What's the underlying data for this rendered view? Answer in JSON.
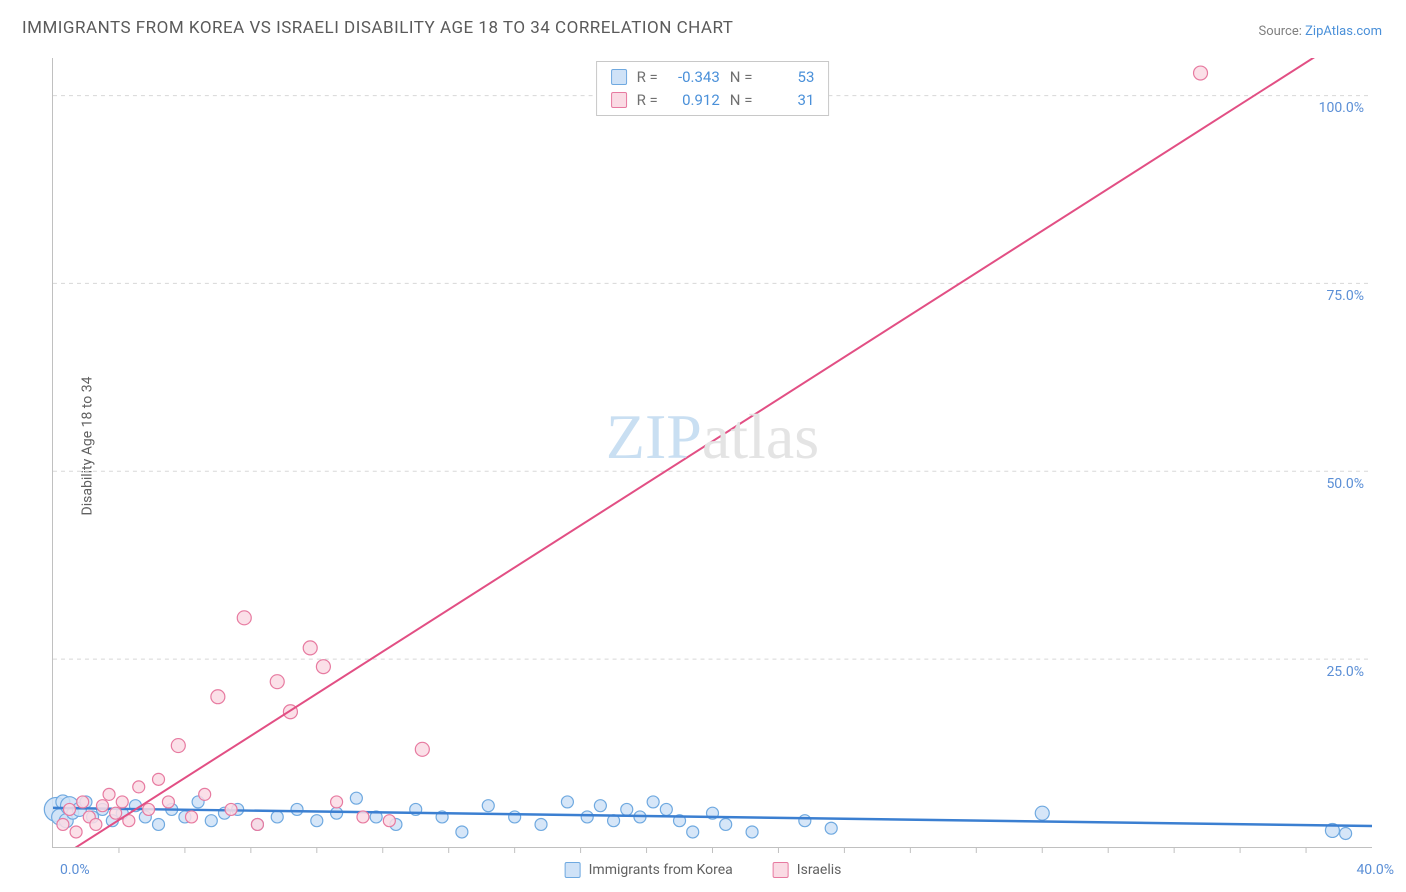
{
  "title": "IMMIGRANTS FROM KOREA VS ISRAELI DISABILITY AGE 18 TO 34 CORRELATION CHART",
  "source": {
    "label": "Source: ",
    "link": "ZipAtlas.com"
  },
  "ylabel": "Disability Age 18 to 34",
  "watermark": {
    "a": "ZIP",
    "b": "atlas"
  },
  "chart": {
    "type": "scatter",
    "xlim": [
      0,
      40
    ],
    "ylim": [
      0,
      105
    ],
    "background_color": "#ffffff",
    "grid_color": "#d8d8d8",
    "axis_color": "#c0c0c0",
    "tick_color": "#5b8fd6",
    "tick_fontsize": 14,
    "yticks": [
      {
        "v": 25,
        "label": "25.0%"
      },
      {
        "v": 50,
        "label": "50.0%"
      },
      {
        "v": 75,
        "label": "75.0%"
      },
      {
        "v": 100,
        "label": "100.0%"
      }
    ],
    "origin_label": "0.0%",
    "xmax_label": "40.0%",
    "xtick_minor": [
      2,
      4,
      6,
      8,
      10,
      12,
      14,
      16,
      18,
      20,
      22,
      24,
      26,
      28,
      30,
      32,
      34,
      36,
      38
    ]
  },
  "series": [
    {
      "key": "korea",
      "label": "Immigrants from Korea",
      "marker_fill": "#cfe2f7",
      "marker_stroke": "#6fa9e0",
      "marker_opacity": 0.85,
      "line_color": "#3b7fd1",
      "line_width": 2.5,
      "trend": {
        "x1": 0,
        "y1": 5.2,
        "x2": 40,
        "y2": 2.8
      },
      "R": "-0.343",
      "N": "53",
      "points": [
        {
          "x": 0.1,
          "y": 5.0,
          "r": 12
        },
        {
          "x": 0.2,
          "y": 4.0,
          "r": 8
        },
        {
          "x": 0.3,
          "y": 6.0,
          "r": 7
        },
        {
          "x": 0.4,
          "y": 3.5,
          "r": 7
        },
        {
          "x": 0.5,
          "y": 5.5,
          "r": 9
        },
        {
          "x": 0.6,
          "y": 4.5,
          "r": 6
        },
        {
          "x": 0.8,
          "y": 5.0,
          "r": 7
        },
        {
          "x": 1.0,
          "y": 6.0,
          "r": 6
        },
        {
          "x": 1.2,
          "y": 4.0,
          "r": 6
        },
        {
          "x": 1.5,
          "y": 5.0,
          "r": 6
        },
        {
          "x": 1.8,
          "y": 3.5,
          "r": 6
        },
        {
          "x": 2.1,
          "y": 4.5,
          "r": 6
        },
        {
          "x": 2.5,
          "y": 5.5,
          "r": 6
        },
        {
          "x": 2.8,
          "y": 4.0,
          "r": 6
        },
        {
          "x": 3.2,
          "y": 3.0,
          "r": 6
        },
        {
          "x": 3.6,
          "y": 5.0,
          "r": 6
        },
        {
          "x": 4.0,
          "y": 4.0,
          "r": 6
        },
        {
          "x": 4.4,
          "y": 6.0,
          "r": 6
        },
        {
          "x": 4.8,
          "y": 3.5,
          "r": 6
        },
        {
          "x": 5.2,
          "y": 4.5,
          "r": 6
        },
        {
          "x": 5.6,
          "y": 5.0,
          "r": 6
        },
        {
          "x": 6.2,
          "y": 3.0,
          "r": 6
        },
        {
          "x": 6.8,
          "y": 4.0,
          "r": 6
        },
        {
          "x": 7.4,
          "y": 5.0,
          "r": 6
        },
        {
          "x": 8.0,
          "y": 3.5,
          "r": 6
        },
        {
          "x": 8.6,
          "y": 4.5,
          "r": 6
        },
        {
          "x": 9.2,
          "y": 6.5,
          "r": 6
        },
        {
          "x": 9.8,
          "y": 4.0,
          "r": 6
        },
        {
          "x": 10.4,
          "y": 3.0,
          "r": 6
        },
        {
          "x": 11.0,
          "y": 5.0,
          "r": 6
        },
        {
          "x": 11.8,
          "y": 4.0,
          "r": 6
        },
        {
          "x": 12.4,
          "y": 2.0,
          "r": 6
        },
        {
          "x": 13.2,
          "y": 5.5,
          "r": 6
        },
        {
          "x": 14.0,
          "y": 4.0,
          "r": 6
        },
        {
          "x": 14.8,
          "y": 3.0,
          "r": 6
        },
        {
          "x": 15.6,
          "y": 6.0,
          "r": 6
        },
        {
          "x": 16.2,
          "y": 4.0,
          "r": 6
        },
        {
          "x": 16.6,
          "y": 5.5,
          "r": 6
        },
        {
          "x": 17.0,
          "y": 3.5,
          "r": 6
        },
        {
          "x": 17.4,
          "y": 5.0,
          "r": 6
        },
        {
          "x": 17.8,
          "y": 4.0,
          "r": 6
        },
        {
          "x": 18.2,
          "y": 6.0,
          "r": 6
        },
        {
          "x": 18.6,
          "y": 5.0,
          "r": 6
        },
        {
          "x": 19.0,
          "y": 3.5,
          "r": 6
        },
        {
          "x": 19.4,
          "y": 2.0,
          "r": 6
        },
        {
          "x": 20.0,
          "y": 4.5,
          "r": 6
        },
        {
          "x": 20.4,
          "y": 3.0,
          "r": 6
        },
        {
          "x": 21.2,
          "y": 2.0,
          "r": 6
        },
        {
          "x": 22.8,
          "y": 3.5,
          "r": 6
        },
        {
          "x": 23.6,
          "y": 2.5,
          "r": 6
        },
        {
          "x": 30.0,
          "y": 4.5,
          "r": 7
        },
        {
          "x": 38.8,
          "y": 2.2,
          "r": 7
        },
        {
          "x": 39.2,
          "y": 1.8,
          "r": 6
        }
      ]
    },
    {
      "key": "israeli",
      "label": "Israelis",
      "marker_fill": "#fadbe4",
      "marker_stroke": "#e77aa0",
      "marker_opacity": 0.85,
      "line_color": "#e24f84",
      "line_width": 2,
      "trend": {
        "x1": 0,
        "y1": -2.0,
        "x2": 40,
        "y2": 110
      },
      "R": "0.912",
      "N": "31",
      "points": [
        {
          "x": 0.3,
          "y": 3.0,
          "r": 6
        },
        {
          "x": 0.5,
          "y": 5.0,
          "r": 6
        },
        {
          "x": 0.7,
          "y": 2.0,
          "r": 6
        },
        {
          "x": 0.9,
          "y": 6.0,
          "r": 6
        },
        {
          "x": 1.1,
          "y": 4.0,
          "r": 6
        },
        {
          "x": 1.3,
          "y": 3.0,
          "r": 6
        },
        {
          "x": 1.5,
          "y": 5.5,
          "r": 6
        },
        {
          "x": 1.7,
          "y": 7.0,
          "r": 6
        },
        {
          "x": 1.9,
          "y": 4.5,
          "r": 6
        },
        {
          "x": 2.1,
          "y": 6.0,
          "r": 6
        },
        {
          "x": 2.3,
          "y": 3.5,
          "r": 6
        },
        {
          "x": 2.6,
          "y": 8.0,
          "r": 6
        },
        {
          "x": 2.9,
          "y": 5.0,
          "r": 6
        },
        {
          "x": 3.2,
          "y": 9.0,
          "r": 6
        },
        {
          "x": 3.5,
          "y": 6.0,
          "r": 6
        },
        {
          "x": 3.8,
          "y": 13.5,
          "r": 7
        },
        {
          "x": 4.2,
          "y": 4.0,
          "r": 6
        },
        {
          "x": 4.6,
          "y": 7.0,
          "r": 6
        },
        {
          "x": 5.0,
          "y": 20.0,
          "r": 7
        },
        {
          "x": 5.4,
          "y": 5.0,
          "r": 6
        },
        {
          "x": 5.8,
          "y": 30.5,
          "r": 7
        },
        {
          "x": 6.2,
          "y": 3.0,
          "r": 6
        },
        {
          "x": 6.8,
          "y": 22.0,
          "r": 7
        },
        {
          "x": 7.2,
          "y": 18.0,
          "r": 7
        },
        {
          "x": 7.8,
          "y": 26.5,
          "r": 7
        },
        {
          "x": 8.2,
          "y": 24.0,
          "r": 7
        },
        {
          "x": 8.6,
          "y": 6.0,
          "r": 6
        },
        {
          "x": 9.4,
          "y": 4.0,
          "r": 6
        },
        {
          "x": 10.2,
          "y": 3.5,
          "r": 6
        },
        {
          "x": 11.2,
          "y": 13.0,
          "r": 7
        },
        {
          "x": 34.8,
          "y": 103.0,
          "r": 7
        }
      ]
    }
  ],
  "stat_box": {
    "r_label": "R =",
    "n_label": "N ="
  },
  "legend": {
    "items": [
      {
        "series": "korea"
      },
      {
        "series": "israeli"
      }
    ]
  }
}
